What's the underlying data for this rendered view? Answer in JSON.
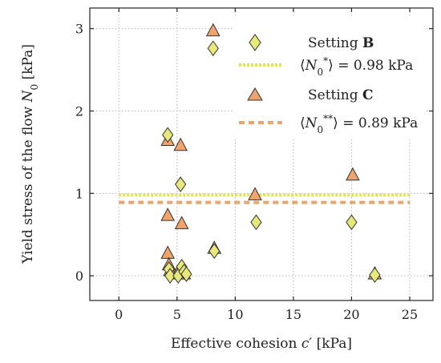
{
  "chart_data": {
    "type": "scatter",
    "xlabel": "Effective cohesion c′ [kPa]",
    "ylabel": "Yield stress of the flow N0 [kPa]",
    "xlim": [
      -2.5,
      27
    ],
    "ylim": [
      -0.3,
      3.25
    ],
    "xticks": [
      0,
      5,
      10,
      15,
      20,
      25
    ],
    "yticks": [
      0,
      1,
      2,
      3
    ],
    "grid": true,
    "legend_position": "top-right",
    "series": [
      {
        "name": "Setting B",
        "marker": "diamond",
        "color": "#e7e87a",
        "points": [
          {
            "x": 4.2,
            "y": 1.71
          },
          {
            "x": 4.3,
            "y": 0.08
          },
          {
            "x": 4.4,
            "y": 0.0
          },
          {
            "x": 5.1,
            "y": 0.0
          },
          {
            "x": 5.3,
            "y": 1.11
          },
          {
            "x": 5.4,
            "y": 0.11
          },
          {
            "x": 5.6,
            "y": 0.05
          },
          {
            "x": 5.8,
            "y": 0.02
          },
          {
            "x": 8.1,
            "y": 2.76
          },
          {
            "x": 8.2,
            "y": 0.3
          },
          {
            "x": 11.8,
            "y": 0.65
          },
          {
            "x": 20.0,
            "y": 0.65
          },
          {
            "x": 22.0,
            "y": 0.01
          }
        ]
      },
      {
        "name": "Setting C",
        "marker": "triangle",
        "color": "#f0a46c",
        "points": [
          {
            "x": 4.2,
            "y": 1.64
          },
          {
            "x": 4.2,
            "y": 0.73
          },
          {
            "x": 4.2,
            "y": 0.27
          },
          {
            "x": 4.3,
            "y": 0.13
          },
          {
            "x": 4.4,
            "y": 0.06
          },
          {
            "x": 5.0,
            "y": 0.02
          },
          {
            "x": 5.3,
            "y": 1.58
          },
          {
            "x": 5.4,
            "y": 0.63
          },
          {
            "x": 5.6,
            "y": 0.02
          },
          {
            "x": 8.1,
            "y": 2.97
          },
          {
            "x": 8.2,
            "y": 0.33
          },
          {
            "x": 11.7,
            "y": 0.98
          },
          {
            "x": 20.1,
            "y": 1.22
          },
          {
            "x": 22.0,
            "y": 0.02
          }
        ]
      }
    ],
    "reference_lines": [
      {
        "name": "⟨N0*⟩ = 0.98 kPa",
        "y": 0.98,
        "x_from": 0,
        "x_to": 25,
        "color": "#e2e255",
        "style": "dotted"
      },
      {
        "name": "⟨N0**⟩ = 0.89 kPa",
        "y": 0.89,
        "x_from": 0,
        "x_to": 25,
        "color": "#e8a56c",
        "style": "dashed"
      }
    ]
  },
  "legend": {
    "setting_b_prefix": "Setting ",
    "setting_b_letter": "B",
    "mean_b_label": "= 0.98 kPa",
    "setting_c_prefix": "Setting ",
    "setting_c_letter": "C",
    "mean_c_label": "= 0.89 kPa"
  },
  "axes": {
    "xlabel_main": "Effective cohesion ",
    "xlabel_var": "c",
    "xlabel_unit": " [kPa]",
    "ylabel_main": "Yield stress of the flow ",
    "ylabel_var": "N",
    "ylabel_unit": " [kPa]"
  }
}
